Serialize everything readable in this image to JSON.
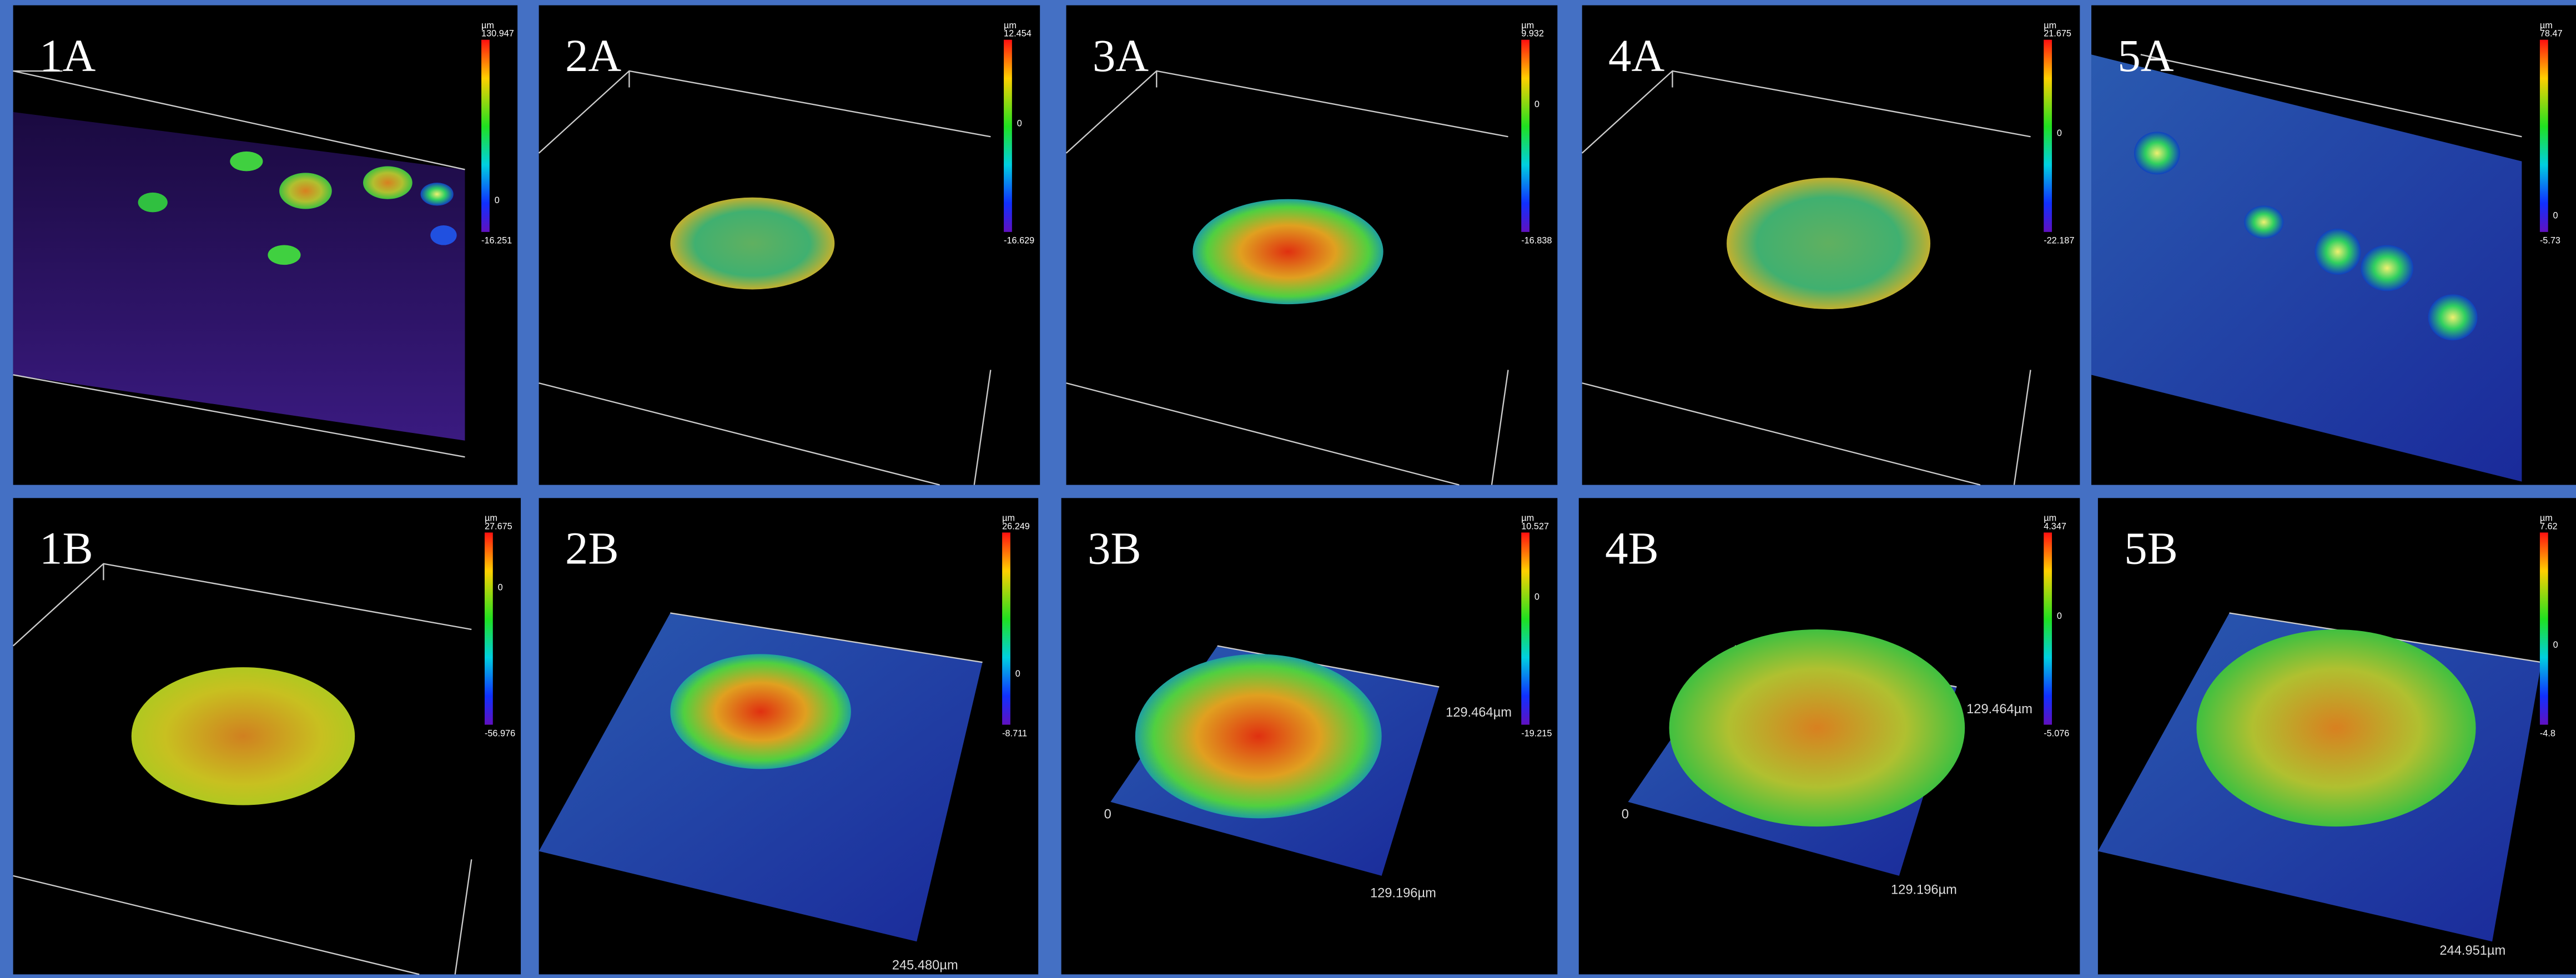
{
  "panels": [
    {
      "label": "1A",
      "scale": {
        "unit": "µm",
        "max": "130.947",
        "zero": "0",
        "min": "-16.251"
      },
      "annotations": []
    },
    {
      "label": "2A",
      "scale": {
        "unit": "µm",
        "max": "12.454",
        "zero": "0",
        "min": "-16.629"
      },
      "annotations": []
    },
    {
      "label": "3A",
      "scale": {
        "unit": "µm",
        "max": "9.932",
        "zero": "0",
        "min": "-16.838"
      },
      "annotations": []
    },
    {
      "label": "4A",
      "scale": {
        "unit": "µm",
        "max": "21.675",
        "zero": "0",
        "min": "-22.187"
      },
      "annotations": []
    },
    {
      "label": "5A",
      "scale": {
        "unit": "µm",
        "max": "78.47",
        "zero": "0",
        "min": "-5.73"
      },
      "annotations": []
    },
    {
      "label": "1B",
      "scale": {
        "unit": "µm",
        "max": "27.675",
        "zero": "0",
        "min": "-56.976"
      },
      "annotations": []
    },
    {
      "label": "2B",
      "scale": {
        "unit": "µm",
        "max": "26.249",
        "zero": "0",
        "min": "-8.711"
      },
      "annotations": [
        "245.480µm"
      ]
    },
    {
      "label": "3B",
      "scale": {
        "unit": "µm",
        "max": "10.527",
        "zero": "0",
        "min": "-19.215"
      },
      "annotations": [
        "129.464µm",
        "129.196µm",
        "0"
      ]
    },
    {
      "label": "4B",
      "scale": {
        "unit": "µm",
        "max": "4.347",
        "zero": "0",
        "min": "-5.076"
      },
      "annotations": [
        "129.464µm",
        "129.196µm",
        "0"
      ]
    },
    {
      "label": "5B",
      "scale": {
        "unit": "µm",
        "max": "7.62",
        "zero": "0",
        "min": "-4.8"
      },
      "annotations": [
        "244.951µm"
      ]
    }
  ]
}
